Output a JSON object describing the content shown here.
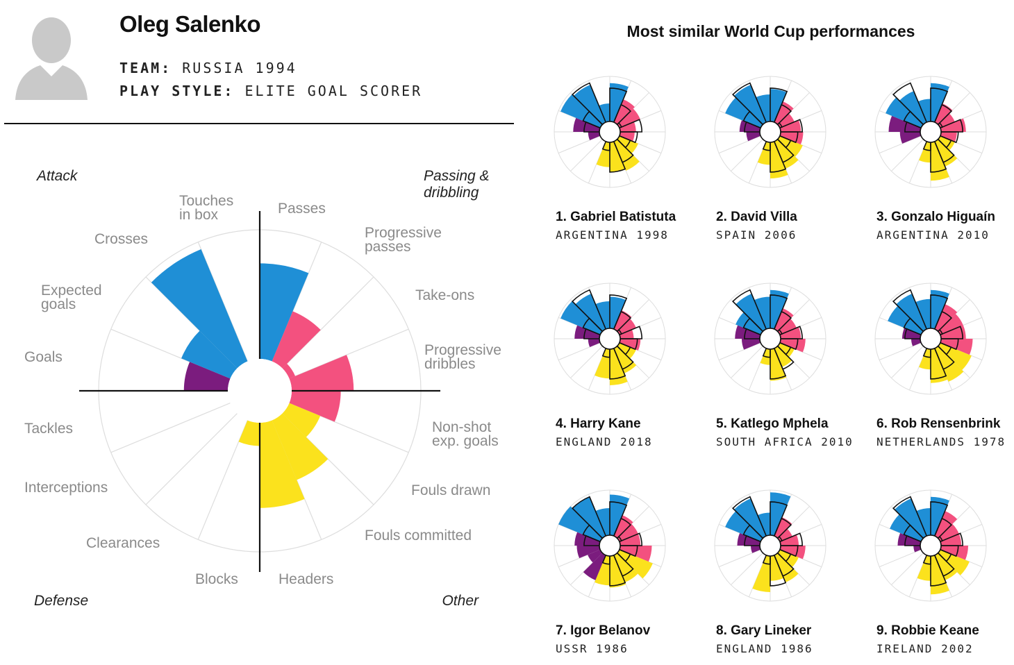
{
  "player": {
    "name": "Oleg Salenko",
    "team_label": "TEAM:",
    "team_value": "RUSSIA 1994",
    "style_label": "PLAY STYLE:",
    "style_value": "ELITE GOAL SCORER"
  },
  "similar_title": "Most similar World Cup performances",
  "colors": {
    "attack": "#1f8fd6",
    "passing": "#f3517f",
    "other": "#fbe21d",
    "defense": "#7b1c7e",
    "grid": "#dddddd",
    "axis": "#111111",
    "label": "#8a8a8a"
  },
  "chart_data": {
    "type": "radial-bar",
    "scale_max": 1.0,
    "quadrants": [
      {
        "name": "Attack",
        "color_key": "attack"
      },
      {
        "name": "Passing & dribbling",
        "color_key": "passing"
      },
      {
        "name": "Other",
        "color_key": "other"
      },
      {
        "name": "Defense",
        "color_key": "defense"
      }
    ],
    "categories": [
      {
        "key": "touches_in_box",
        "label": "Touches in box",
        "group": "attack"
      },
      {
        "key": "passes",
        "label": "Passes",
        "group": "passing"
      },
      {
        "key": "progressive_passes",
        "label": "Progressive passes",
        "group": "passing"
      },
      {
        "key": "take_ons",
        "label": "Take-ons",
        "group": "passing"
      },
      {
        "key": "progressive_dribbles",
        "label": "Progressive dribbles",
        "group": "passing"
      },
      {
        "key": "non_shot_xg",
        "label": "Non-shot exp. goals",
        "group": "other"
      },
      {
        "key": "fouls_drawn",
        "label": "Fouls drawn",
        "group": "other"
      },
      {
        "key": "fouls_committed",
        "label": "Fouls committed",
        "group": "other"
      },
      {
        "key": "headers",
        "label": "Headers",
        "group": "other"
      },
      {
        "key": "blocks",
        "label": "Blocks",
        "group": "defense"
      },
      {
        "key": "clearances",
        "label": "Clearances",
        "group": "defense"
      },
      {
        "key": "interceptions",
        "label": "Interceptions",
        "group": "defense"
      },
      {
        "key": "tackles",
        "label": "Tackles",
        "group": "defense"
      },
      {
        "key": "goals",
        "label": "Goals",
        "group": "attack"
      },
      {
        "key": "expected_goals",
        "label": "Expected goals",
        "group": "attack"
      },
      {
        "key": "crosses",
        "label": "Crosses",
        "group": "attack"
      }
    ],
    "values": [
      0.74,
      0.42,
      0.05,
      0.48,
      0.38,
      0.26,
      0.5,
      0.66,
      0.18,
      0.0,
      0.0,
      0.0,
      0.34,
      0.41,
      0.94,
      0.0
    ],
    "similar": [
      {
        "rank_name": "1. Gabriel Batistuta",
        "sub": "ARGENTINA 1998",
        "values": [
          0.85,
          0.55,
          0.5,
          0.35,
          0.32,
          0.45,
          0.7,
          0.65,
          0.55,
          0.0,
          0.0,
          0.25,
          0.58,
          0.95,
          0.9,
          0.4
        ]
      },
      {
        "rank_name": "2. David Villa",
        "sub": "SPAIN 2006",
        "values": [
          0.72,
          0.5,
          0.35,
          0.45,
          0.5,
          0.55,
          0.65,
          0.8,
          0.5,
          0.0,
          0.0,
          0.3,
          0.45,
          0.85,
          0.9,
          0.6
        ]
      },
      {
        "rank_name": "3. Gonzalo Higuaín",
        "sub": "ARGENTINA 2010",
        "values": [
          0.85,
          0.45,
          0.35,
          0.55,
          0.35,
          0.35,
          0.6,
          0.85,
          0.45,
          0.0,
          0.0,
          0.45,
          0.7,
          0.85,
          0.75,
          0.5
        ]
      },
      {
        "rank_name": "4. Harry Kane",
        "sub": "ENGLAND 2018",
        "values": [
          0.7,
          0.45,
          0.4,
          0.3,
          0.45,
          0.4,
          0.6,
          0.8,
          0.65,
          0.0,
          0.0,
          0.25,
          0.55,
          0.95,
          0.85,
          0.6
        ]
      },
      {
        "rank_name": "5. Katlego Mphela",
        "sub": "SOUTH AFRICA 2010",
        "values": [
          0.85,
          0.5,
          0.4,
          0.45,
          0.55,
          0.35,
          0.45,
          0.7,
          0.35,
          0.0,
          0.0,
          0.4,
          0.55,
          0.6,
          0.85,
          0.7
        ]
      },
      {
        "rank_name": "6. Rob Rensenbrink",
        "sub": "NETHERLANDS 1978",
        "values": [
          0.85,
          0.6,
          0.55,
          0.55,
          0.7,
          0.75,
          0.8,
          0.75,
          0.45,
          0.0,
          0.0,
          0.2,
          0.4,
          0.8,
          0.85,
          0.65
        ]
      },
      {
        "rank_name": "7. Igor Belanov",
        "sub": "USSR 1986",
        "values": [
          0.9,
          0.5,
          0.45,
          0.45,
          0.7,
          0.8,
          0.65,
          0.7,
          0.65,
          0.6,
          0.3,
          0.5,
          0.55,
          1.0,
          0.95,
          0.6
        ]
      },
      {
        "rank_name": "8. Gary Lineker",
        "sub": "ENGLAND 1986",
        "values": [
          0.95,
          0.45,
          0.3,
          0.4,
          0.55,
          0.45,
          0.65,
          0.55,
          0.8,
          0.0,
          0.0,
          0.2,
          0.5,
          0.85,
          0.9,
          0.5
        ]
      },
      {
        "rank_name": "9. Robbie Keane",
        "sub": "IRELAND 2002",
        "values": [
          0.85,
          0.6,
          0.45,
          0.45,
          0.6,
          0.7,
          0.6,
          0.85,
          0.55,
          0.0,
          0.0,
          0.15,
          0.5,
          0.75,
          0.9,
          0.6
        ]
      }
    ]
  }
}
